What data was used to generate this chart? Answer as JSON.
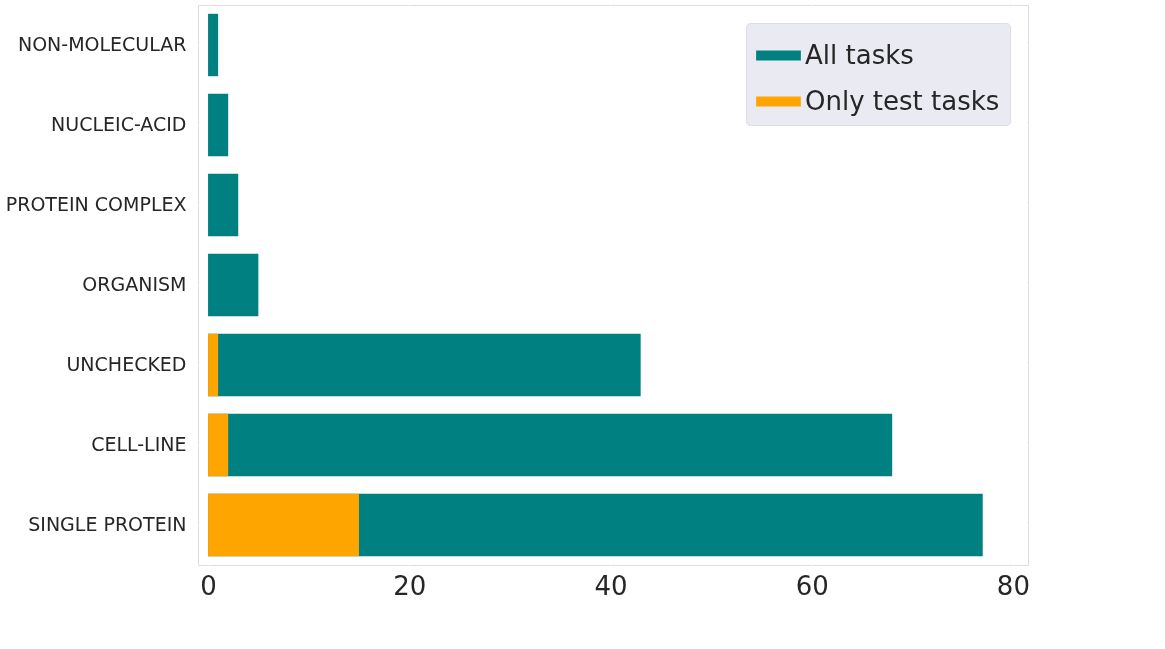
{
  "chart_data": {
    "type": "bar",
    "orientation": "horizontal",
    "categories": [
      "NON-MOLECULAR",
      "NUCLEIC-ACID",
      "PROTEIN COMPLEX",
      "ORGANISM",
      "UNCHECKED",
      "CELL-LINE",
      "SINGLE PROTEIN"
    ],
    "series": [
      {
        "name": "All tasks",
        "color": "#008080",
        "values": [
          1,
          2,
          3,
          5,
          43,
          68,
          77
        ]
      },
      {
        "name": "Only test tasks",
        "color": "#ffa500",
        "values": [
          0,
          0,
          0,
          0,
          1,
          2,
          15
        ]
      }
    ],
    "xlim": [
      -1,
      81.5
    ],
    "xticks": [
      0,
      20,
      40,
      60,
      80
    ],
    "grid": true,
    "legend": "top right"
  }
}
